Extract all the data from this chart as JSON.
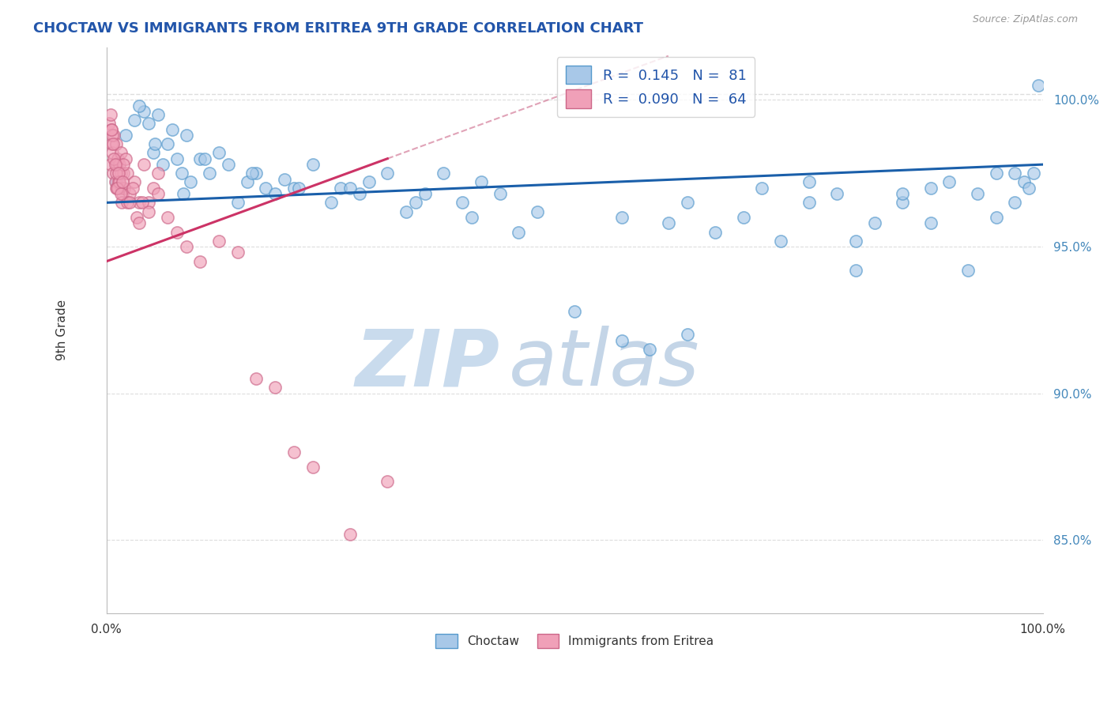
{
  "title": "CHOCTAW VS IMMIGRANTS FROM ERITREA 9TH GRADE CORRELATION CHART",
  "source": "Source: ZipAtlas.com",
  "ylabel": "9th Grade",
  "xlim": [
    0.0,
    100.0
  ],
  "ylim": [
    82.5,
    101.8
  ],
  "yticks": [
    85.0,
    90.0,
    95.0,
    100.0
  ],
  "ytick_labels": [
    "85.0%",
    "90.0%",
    "95.0%",
    "100.0%"
  ],
  "legend_R1": "0.145",
  "legend_N1": "81",
  "legend_R2": "0.090",
  "legend_N2": "64",
  "blue_color": "#a8c8e8",
  "pink_color": "#f0a0b8",
  "blue_edge_color": "#5599cc",
  "pink_edge_color": "#cc6688",
  "blue_line_color": "#1a5faa",
  "pink_line_color": "#cc3366",
  "watermark_color": "#d0e0f0",
  "background_color": "#ffffff",
  "dashed_line_color": "#dddddd",
  "top_dashed_y": 100.2,
  "blue_x": [
    1.0,
    2.0,
    3.0,
    4.0,
    5.0,
    5.5,
    6.0,
    6.5,
    7.0,
    7.5,
    8.0,
    8.5,
    9.0,
    10.0,
    11.0,
    12.0,
    13.0,
    14.0,
    15.0,
    16.0,
    17.0,
    18.0,
    19.0,
    20.0,
    22.0,
    24.0,
    25.0,
    27.0,
    28.0,
    30.0,
    32.0,
    34.0,
    36.0,
    38.0,
    40.0,
    42.0,
    44.0,
    46.0,
    50.0,
    55.0,
    58.0,
    60.0,
    62.0,
    65.0,
    68.0,
    70.0,
    72.0,
    75.0,
    78.0,
    80.0,
    82.0,
    85.0,
    88.0,
    90.0,
    93.0,
    95.0,
    97.0,
    98.0,
    99.0,
    99.5,
    55.0,
    62.0,
    75.0,
    80.0,
    85.0,
    88.0,
    92.0,
    95.0,
    97.0,
    98.5,
    3.5,
    4.5,
    5.2,
    8.2,
    10.5,
    15.5,
    20.5,
    26.0,
    33.0,
    39.0
  ],
  "blue_y": [
    97.2,
    98.8,
    99.3,
    99.6,
    98.2,
    99.5,
    97.8,
    98.5,
    99.0,
    98.0,
    97.5,
    98.8,
    97.2,
    98.0,
    97.5,
    98.2,
    97.8,
    96.5,
    97.2,
    97.5,
    97.0,
    96.8,
    97.3,
    97.0,
    97.8,
    96.5,
    97.0,
    96.8,
    97.2,
    97.5,
    96.2,
    96.8,
    97.5,
    96.5,
    97.2,
    96.8,
    95.5,
    96.2,
    92.8,
    91.8,
    91.5,
    95.8,
    92.0,
    95.5,
    96.0,
    97.0,
    95.2,
    96.5,
    96.8,
    94.2,
    95.8,
    96.5,
    95.8,
    97.2,
    96.8,
    97.5,
    96.5,
    97.2,
    97.5,
    100.5,
    96.0,
    96.5,
    97.2,
    95.2,
    96.8,
    97.0,
    94.2,
    96.0,
    97.5,
    97.0,
    99.8,
    99.2,
    98.5,
    96.8,
    98.0,
    97.5,
    97.0,
    97.0,
    96.5,
    96.0
  ],
  "pink_x": [
    0.3,
    0.4,
    0.5,
    0.5,
    0.6,
    0.7,
    0.8,
    0.9,
    1.0,
    1.0,
    1.1,
    1.2,
    1.3,
    1.4,
    1.5,
    1.5,
    1.6,
    1.7,
    1.8,
    1.9,
    2.0,
    2.2,
    2.5,
    3.0,
    3.5,
    4.0,
    4.5,
    5.0,
    0.4,
    0.6,
    0.8,
    1.0,
    1.2,
    1.4,
    1.6,
    1.8,
    2.2,
    2.8,
    3.2,
    3.8,
    4.5,
    5.5,
    6.5,
    7.5,
    8.5,
    10.0,
    12.0,
    14.0,
    16.0,
    18.0,
    20.0,
    22.0,
    26.0,
    30.0,
    0.5,
    0.7,
    0.9,
    1.1,
    1.3,
    1.5,
    1.7,
    2.5,
    3.5,
    5.5
  ],
  "pink_y": [
    99.2,
    97.8,
    98.5,
    99.0,
    98.2,
    97.5,
    98.8,
    97.2,
    98.5,
    97.0,
    97.8,
    98.0,
    97.2,
    97.8,
    97.5,
    98.2,
    97.0,
    96.8,
    97.5,
    97.0,
    98.0,
    97.5,
    96.8,
    97.2,
    96.5,
    97.8,
    96.5,
    97.0,
    99.5,
    98.8,
    98.0,
    97.5,
    97.0,
    97.2,
    96.5,
    97.8,
    96.5,
    97.0,
    96.0,
    96.5,
    96.2,
    96.8,
    96.0,
    95.5,
    95.0,
    94.5,
    95.2,
    94.8,
    90.5,
    90.2,
    88.0,
    87.5,
    85.2,
    87.0,
    99.0,
    98.5,
    97.8,
    97.0,
    97.5,
    96.8,
    97.2,
    96.5,
    95.8,
    97.5
  ],
  "blue_trend_x0": 0.0,
  "blue_trend_y0": 96.5,
  "blue_trend_x1": 100.0,
  "blue_trend_y1": 97.8,
  "pink_trend_x0": 0.0,
  "pink_trend_y0": 94.5,
  "pink_trend_x1": 30.0,
  "pink_trend_y1": 98.0
}
